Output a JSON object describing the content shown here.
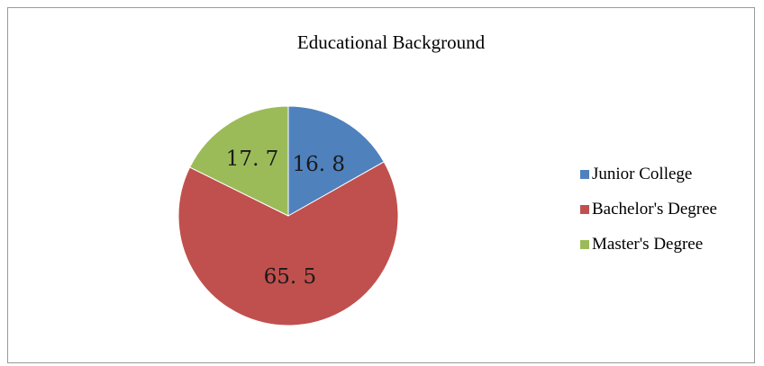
{
  "chart_data": {
    "type": "pie",
    "title": "Educational Background",
    "categories": [
      "Junior College",
      "Bachelor's Degree",
      "Master's Degree"
    ],
    "values": [
      16.8,
      65.5,
      17.7
    ],
    "data_labels": [
      "16. 8",
      "65. 5",
      "17. 7"
    ],
    "colors": [
      "#4f81bd",
      "#c0504d",
      "#9bbb59"
    ],
    "legend_position": "right",
    "start_angle": "12 o'clock, clockwise"
  }
}
